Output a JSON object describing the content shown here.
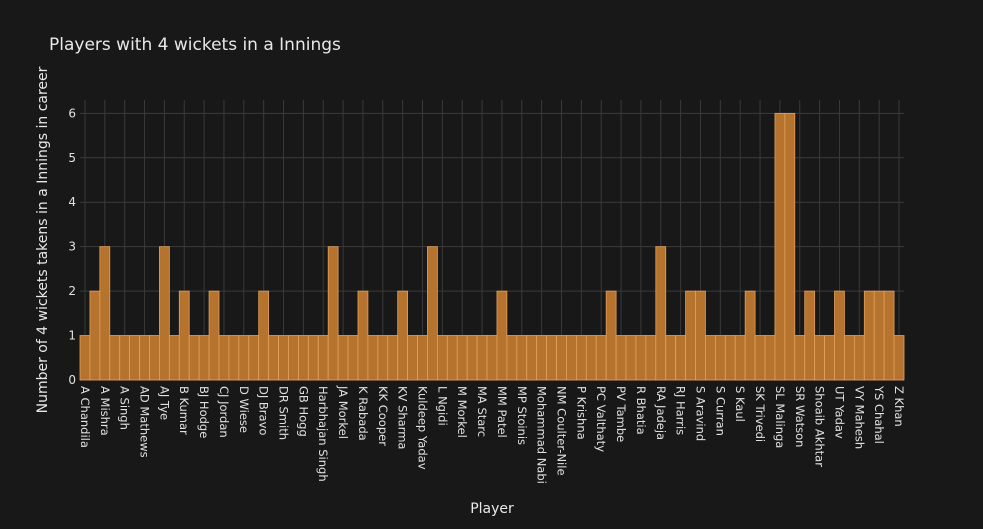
{
  "chart_data": {
    "type": "bar",
    "title": "Players with 4 wickets in a Innings",
    "xlabel": "Player",
    "ylabel": "Number of 4 wickets takens in a Innings in career",
    "ylim": [
      0,
      6.3
    ],
    "yticks": [
      0,
      1,
      2,
      3,
      4,
      5,
      6
    ],
    "grid": true,
    "bar_color": "#b5732e",
    "bar_edge_color": "#e0a060",
    "categories": [
      "A Chandila",
      "",
      "A Mishra",
      "",
      "A Singh",
      "",
      "AD Mathews",
      "",
      "AJ Tye",
      "",
      "B Kumar",
      "",
      "BJ Hodge",
      "",
      "CJ Jordan",
      "",
      "D Wiese",
      "",
      "DJ Bravo",
      "",
      "DR Smith",
      "",
      "GB Hogg",
      "",
      "Harbhajan Singh",
      "",
      "JA Morkel",
      "",
      "K Rabada",
      "",
      "KK Cooper",
      "",
      "KV Sharma",
      "",
      "Kuldeep Yadav",
      "",
      "L Ngidi",
      "",
      "M Morkel",
      "",
      "MA Starc",
      "",
      "MM Patel",
      "",
      "MP Stoinis",
      "",
      "Mohammad Nabi",
      "",
      "NM Coulter-Nile",
      "",
      "P Krishna",
      "",
      "PC Valthaty",
      "",
      "PV Tambe",
      "",
      "R Bhatia",
      "",
      "RA Jadeja",
      "",
      "RJ Harris",
      "",
      "S Aravind",
      "",
      "S Curran",
      "",
      "S Kaul",
      "",
      "SK Trivedi",
      "",
      "SL Malinga",
      "",
      "SR Watson",
      "",
      "Shoaib Akhtar",
      "",
      "UT Yadav",
      "",
      "VY Mahesh",
      "",
      "YS Chahal",
      "",
      "Z Khan"
    ],
    "values": [
      1,
      2,
      3,
      1,
      1,
      1,
      1,
      1,
      3,
      1,
      2,
      1,
      1,
      2,
      1,
      1,
      1,
      1,
      2,
      1,
      1,
      1,
      1,
      1,
      1,
      3,
      1,
      1,
      2,
      1,
      1,
      1,
      2,
      1,
      1,
      3,
      1,
      1,
      1,
      1,
      1,
      1,
      2,
      1,
      1,
      1,
      1,
      1,
      1,
      1,
      1,
      1,
      1,
      2,
      1,
      1,
      1,
      1,
      3,
      1,
      1,
      2,
      2,
      1,
      1,
      1,
      1,
      2,
      1,
      1,
      6,
      6,
      1,
      2,
      1,
      1,
      2,
      1,
      1,
      2,
      2,
      2,
      1
    ]
  }
}
